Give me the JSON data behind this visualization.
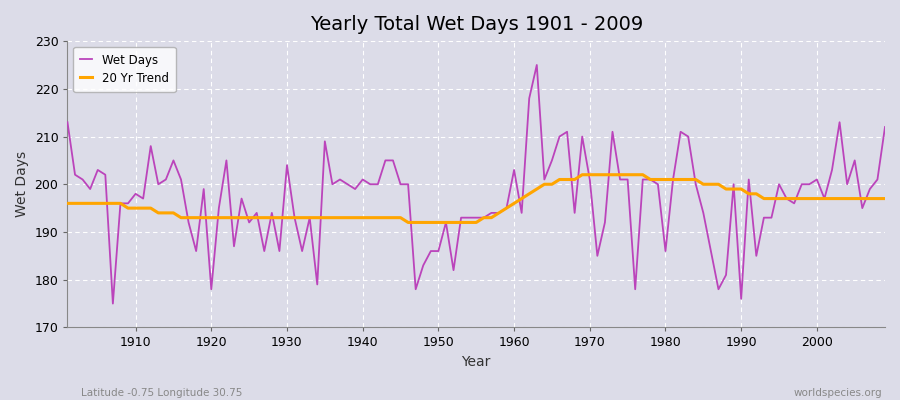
{
  "title": "Yearly Total Wet Days 1901 - 2009",
  "xlabel": "Year",
  "ylabel": "Wet Days",
  "lat_lon_label": "Latitude -0.75 Longitude 30.75",
  "watermark": "worldspecies.org",
  "line_color": "#BB44BB",
  "trend_color": "#FFA500",
  "bg_color": "#DCDCE8",
  "grid_color": "#FFFFFF",
  "ylim": [
    170,
    230
  ],
  "xlim": [
    1901,
    2009
  ],
  "yticks": [
    170,
    180,
    190,
    200,
    210,
    220,
    230
  ],
  "years": [
    1901,
    1902,
    1903,
    1904,
    1905,
    1906,
    1907,
    1908,
    1909,
    1910,
    1911,
    1912,
    1913,
    1914,
    1915,
    1916,
    1917,
    1918,
    1919,
    1920,
    1921,
    1922,
    1923,
    1924,
    1925,
    1926,
    1927,
    1928,
    1929,
    1930,
    1931,
    1932,
    1933,
    1934,
    1935,
    1936,
    1937,
    1938,
    1939,
    1940,
    1941,
    1942,
    1943,
    1944,
    1945,
    1946,
    1947,
    1948,
    1949,
    1950,
    1951,
    1952,
    1953,
    1954,
    1955,
    1956,
    1957,
    1958,
    1959,
    1960,
    1961,
    1962,
    1963,
    1964,
    1965,
    1966,
    1967,
    1968,
    1969,
    1970,
    1971,
    1972,
    1973,
    1974,
    1975,
    1976,
    1977,
    1978,
    1979,
    1980,
    1981,
    1982,
    1983,
    1984,
    1985,
    1986,
    1987,
    1988,
    1989,
    1990,
    1991,
    1992,
    1993,
    1994,
    1995,
    1996,
    1997,
    1998,
    1999,
    2000,
    2001,
    2002,
    2003,
    2004,
    2005,
    2006,
    2007,
    2008,
    2009
  ],
  "wet_days": [
    213,
    202,
    201,
    199,
    203,
    202,
    175,
    196,
    196,
    198,
    197,
    208,
    200,
    201,
    205,
    201,
    192,
    186,
    199,
    178,
    195,
    205,
    187,
    197,
    192,
    194,
    186,
    194,
    186,
    204,
    193,
    186,
    193,
    179,
    209,
    200,
    201,
    200,
    199,
    201,
    200,
    200,
    205,
    205,
    200,
    200,
    178,
    183,
    186,
    186,
    192,
    182,
    193,
    193,
    193,
    193,
    194,
    194,
    195,
    203,
    194,
    218,
    225,
    201,
    205,
    210,
    211,
    194,
    210,
    201,
    185,
    192,
    211,
    201,
    201,
    178,
    201,
    201,
    200,
    186,
    201,
    211,
    210,
    200,
    194,
    186,
    178,
    181,
    200,
    176,
    201,
    185,
    193,
    193,
    200,
    197,
    196,
    200,
    200,
    201,
    197,
    203,
    213,
    200,
    205,
    195,
    199,
    201,
    212
  ],
  "trend": [
    196,
    196,
    196,
    196,
    196,
    196,
    196,
    196,
    195,
    195,
    195,
    195,
    194,
    194,
    194,
    193,
    193,
    193,
    193,
    193,
    193,
    193,
    193,
    193,
    193,
    193,
    193,
    193,
    193,
    193,
    193,
    193,
    193,
    193,
    193,
    193,
    193,
    193,
    193,
    193,
    193,
    193,
    193,
    193,
    193,
    192,
    192,
    192,
    192,
    192,
    192,
    192,
    192,
    192,
    192,
    193,
    193,
    194,
    195,
    196,
    197,
    198,
    199,
    200,
    200,
    201,
    201,
    201,
    202,
    202,
    202,
    202,
    202,
    202,
    202,
    202,
    202,
    201,
    201,
    201,
    201,
    201,
    201,
    201,
    200,
    200,
    200,
    199,
    199,
    199,
    198,
    198,
    197,
    197,
    197,
    197,
    197,
    197,
    197,
    197,
    197,
    197,
    197,
    197,
    197,
    197,
    197,
    197,
    197
  ]
}
